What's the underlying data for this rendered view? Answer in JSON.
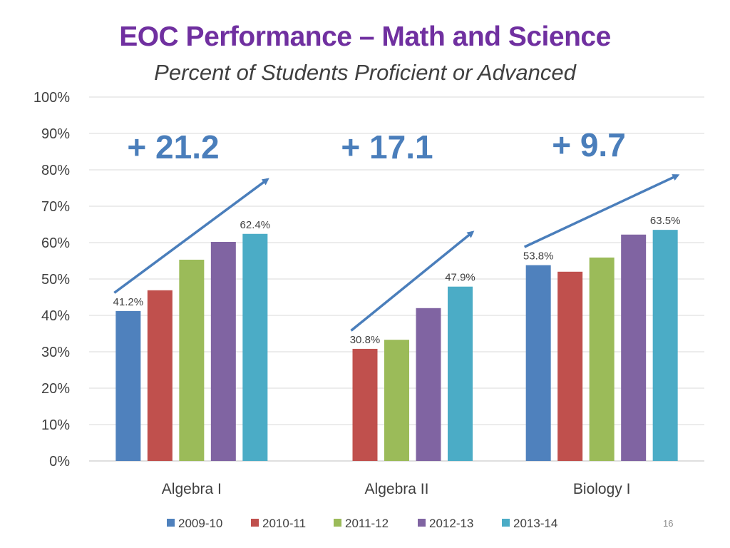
{
  "slide": {
    "title": "EOC Performance – Math and Science",
    "subtitle": "Percent of Students Proficient or Advanced",
    "page_number": "16"
  },
  "chart_data": {
    "type": "bar",
    "categories": [
      "Algebra I",
      "Algebra II",
      "Biology I"
    ],
    "series": [
      {
        "name": "2009-10",
        "color": "#4F81BD",
        "values": [
          41.2,
          null,
          53.8
        ]
      },
      {
        "name": "2010-11",
        "color": "#C0504D",
        "values": [
          46.9,
          30.8,
          52.0
        ]
      },
      {
        "name": "2011-12",
        "color": "#9BBB59",
        "values": [
          55.3,
          33.3,
          55.9
        ]
      },
      {
        "name": "2012-13",
        "color": "#8064A2",
        "values": [
          60.2,
          42.0,
          62.2
        ]
      },
      {
        "name": "2013-14",
        "color": "#4BACC6",
        "values": [
          62.4,
          47.9,
          63.5
        ]
      }
    ],
    "data_labels": [
      {
        "category": 0,
        "series": 0,
        "text": "41.2%"
      },
      {
        "category": 0,
        "series": 4,
        "text": "62.4%"
      },
      {
        "category": 1,
        "series": 1,
        "text": "30.8%"
      },
      {
        "category": 1,
        "series": 4,
        "text": "47.9%"
      },
      {
        "category": 2,
        "series": 0,
        "text": "53.8%"
      },
      {
        "category": 2,
        "series": 4,
        "text": "63.5%"
      }
    ],
    "annotations": [
      {
        "category": 0,
        "text": "+ 21.2"
      },
      {
        "category": 1,
        "text": "+ 17.1"
      },
      {
        "category": 2,
        "text": "+ 9.7"
      }
    ],
    "ylim": [
      0,
      100
    ],
    "yticks": [
      0,
      10,
      20,
      30,
      40,
      50,
      60,
      70,
      80,
      90,
      100
    ],
    "ytick_labels": [
      "0%",
      "10%",
      "20%",
      "30%",
      "40%",
      "50%",
      "60%",
      "70%",
      "80%",
      "90%",
      "100%"
    ],
    "grid": true,
    "legend_position": "bottom",
    "arrow_color": "#4A7EBB"
  }
}
